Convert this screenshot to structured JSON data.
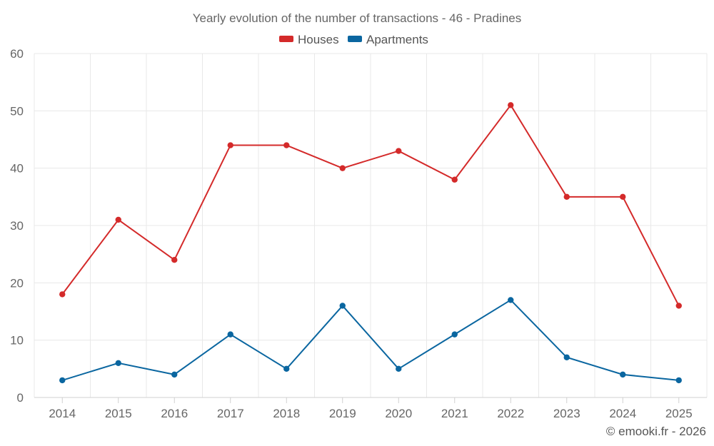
{
  "chart_data": {
    "type": "line",
    "title": "Yearly evolution of the number of transactions - 46 - Pradines",
    "categories": [
      "2014",
      "2015",
      "2016",
      "2017",
      "2018",
      "2019",
      "2020",
      "2021",
      "2022",
      "2023",
      "2024",
      "2025"
    ],
    "series": [
      {
        "name": "Houses",
        "color": "#d42a2a",
        "values": [
          18,
          31,
          24,
          44,
          44,
          40,
          43,
          38,
          51,
          35,
          35,
          16
        ]
      },
      {
        "name": "Apartments",
        "color": "#0a66a0",
        "values": [
          3,
          6,
          4,
          11,
          5,
          16,
          5,
          11,
          17,
          7,
          4,
          3
        ]
      }
    ],
    "ylim": [
      0,
      60
    ],
    "yticks": [
      0,
      10,
      20,
      30,
      40,
      50,
      60
    ],
    "grid": true,
    "legend": "top-center"
  },
  "credit": "© emooki.fr - 2026"
}
